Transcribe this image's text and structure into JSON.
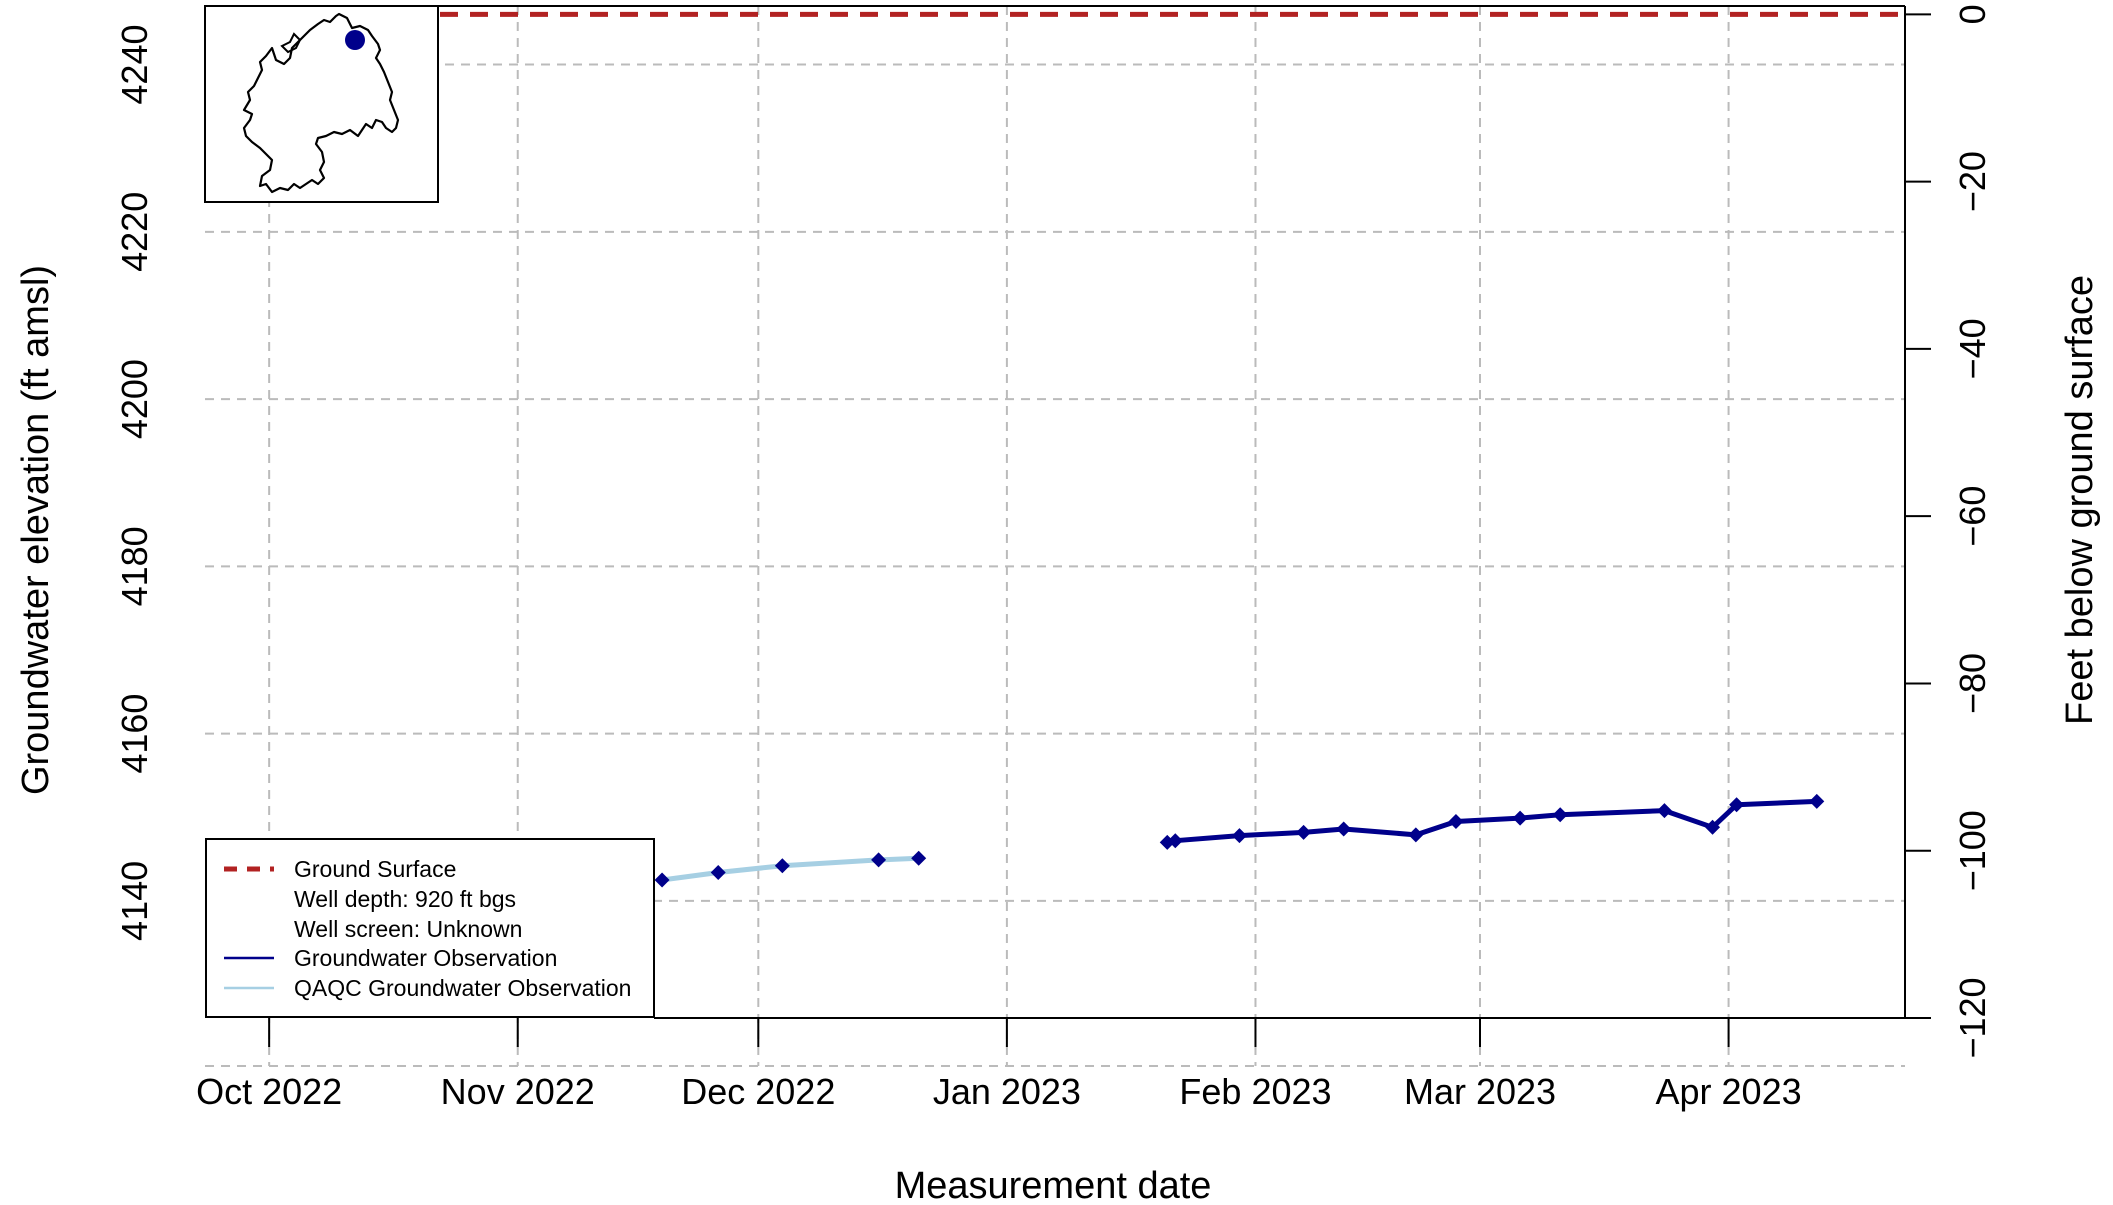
{
  "chart_data": {
    "type": "line",
    "title": "",
    "xlabel": "Measurement date",
    "ylabel": "Groundwater elevation (ft amsl)",
    "ylabel_right": "Feet below ground surface",
    "x_tick_labels": [
      "Oct 2022",
      "Nov 2022",
      "Dec 2022",
      "Jan 2023",
      "Feb 2023",
      "Mar 2023",
      "Apr 2023"
    ],
    "x_tick_dates": [
      "2022-10-01",
      "2022-11-01",
      "2022-12-01",
      "2023-01-01",
      "2023-02-01",
      "2023-03-01",
      "2023-04-01"
    ],
    "xlim": [
      "2022-09-23",
      "2023-04-23"
    ],
    "ylim": [
      4126,
      4247
    ],
    "y_ticks": [
      4140,
      4160,
      4180,
      4200,
      4220,
      4240
    ],
    "y_tick_labels": [
      "4140",
      "4160",
      "4180",
      "4200",
      "4220",
      "4240"
    ],
    "ground_surface_elevation": 4246,
    "y2_ticks": [
      0,
      -20,
      -40,
      -60,
      -80,
      -100,
      -120
    ],
    "y2_tick_labels": [
      "0",
      "−20",
      "−40",
      "−60",
      "−80",
      "−100",
      "−120"
    ],
    "grid": true,
    "series": [
      {
        "name": "QAQC Groundwater Observation",
        "color": "#a6cfe3",
        "points": [
          {
            "x": "2022-11-19",
            "y": 4142.5
          },
          {
            "x": "2022-11-26",
            "y": 4143.4
          },
          {
            "x": "2022-12-04",
            "y": 4144.2
          },
          {
            "x": "2022-12-16",
            "y": 4144.9
          },
          {
            "x": "2022-12-21",
            "y": 4145.1
          }
        ]
      },
      {
        "name": "Groundwater Observation",
        "color": "#00008b",
        "points": [
          {
            "x": "2023-01-21",
            "y": 4147.0
          },
          {
            "x": "2023-01-22",
            "y": 4147.2
          },
          {
            "x": "2023-01-30",
            "y": 4147.8
          },
          {
            "x": "2023-02-07",
            "y": 4148.2
          },
          {
            "x": "2023-02-12",
            "y": 4148.6
          },
          {
            "x": "2023-02-21",
            "y": 4147.9
          },
          {
            "x": "2023-02-26",
            "y": 4149.5
          },
          {
            "x": "2023-03-06",
            "y": 4149.9
          },
          {
            "x": "2023-03-11",
            "y": 4150.3
          },
          {
            "x": "2023-03-24",
            "y": 4150.8
          },
          {
            "x": "2023-03-30",
            "y": 4148.8
          },
          {
            "x": "2023-04-02",
            "y": 4151.5
          },
          {
            "x": "2023-04-12",
            "y": 4151.9
          }
        ]
      }
    ],
    "legend": {
      "position": "bottom-left",
      "entries": [
        {
          "label": "Ground Surface",
          "style": "dashed",
          "color": "#b22222"
        },
        {
          "label": "Well depth: 920 ft bgs",
          "style": "none"
        },
        {
          "label": "Well screen: Unknown",
          "style": "none"
        },
        {
          "label": "Groundwater Observation",
          "style": "solid",
          "color": "#00008b"
        },
        {
          "label": "QAQC Groundwater Observation",
          "style": "solid",
          "color": "#a6cfe3"
        }
      ]
    },
    "inset_map": {
      "position": "top-left",
      "marker_color": "#00008b"
    },
    "colors": {
      "ground_surface": "#b22222",
      "grid": "#bbbbbb",
      "axis": "#000000"
    }
  }
}
